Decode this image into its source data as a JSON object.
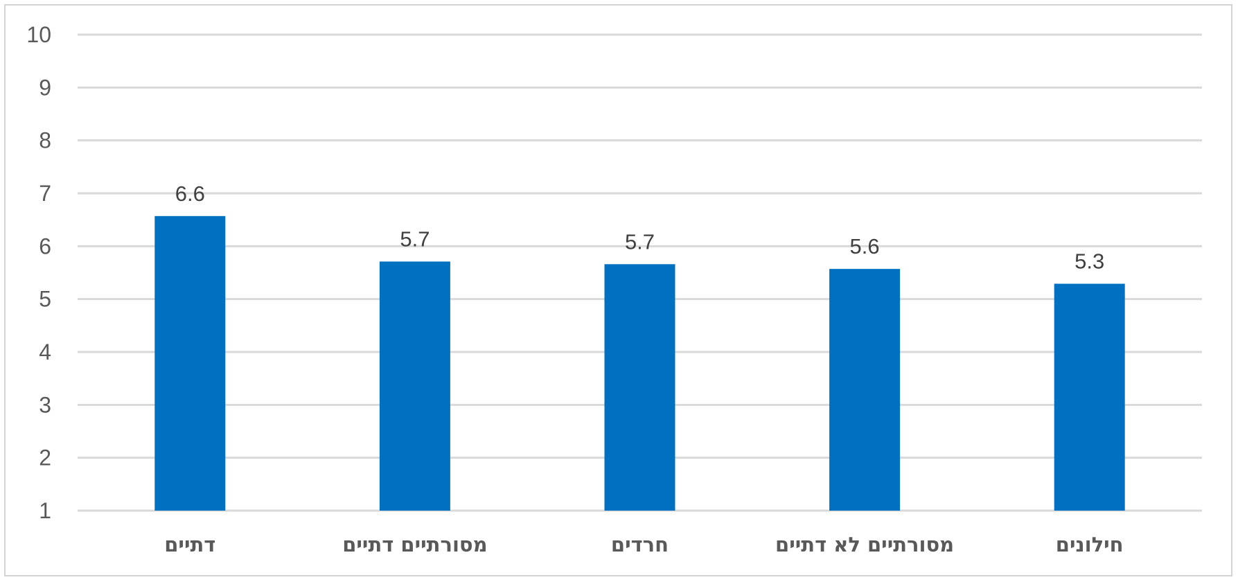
{
  "chart_data": {
    "type": "bar",
    "categories": [
      "דתיים",
      "מסורתיים דתיים",
      "חרדים",
      "מסורתיים לא דתיים",
      "חילונים"
    ],
    "values": [
      6.57,
      5.71,
      5.66,
      5.57,
      5.29
    ],
    "data_labels": [
      "6.6",
      "5.7",
      "5.7",
      "5.6",
      "5.3"
    ],
    "y_ticks": [
      "1",
      "2",
      "3",
      "4",
      "5",
      "6",
      "7",
      "8",
      "9",
      "10"
    ],
    "ylim": [
      1,
      10
    ],
    "grid": true,
    "legend": "none",
    "title": "",
    "xlabel": "",
    "ylabel": "",
    "colors": {
      "bar": "#0070c0",
      "grid": "#d9d9d9",
      "frame": "#d4d4d4",
      "tick_text": "#595959",
      "label_text": "#404040"
    }
  }
}
